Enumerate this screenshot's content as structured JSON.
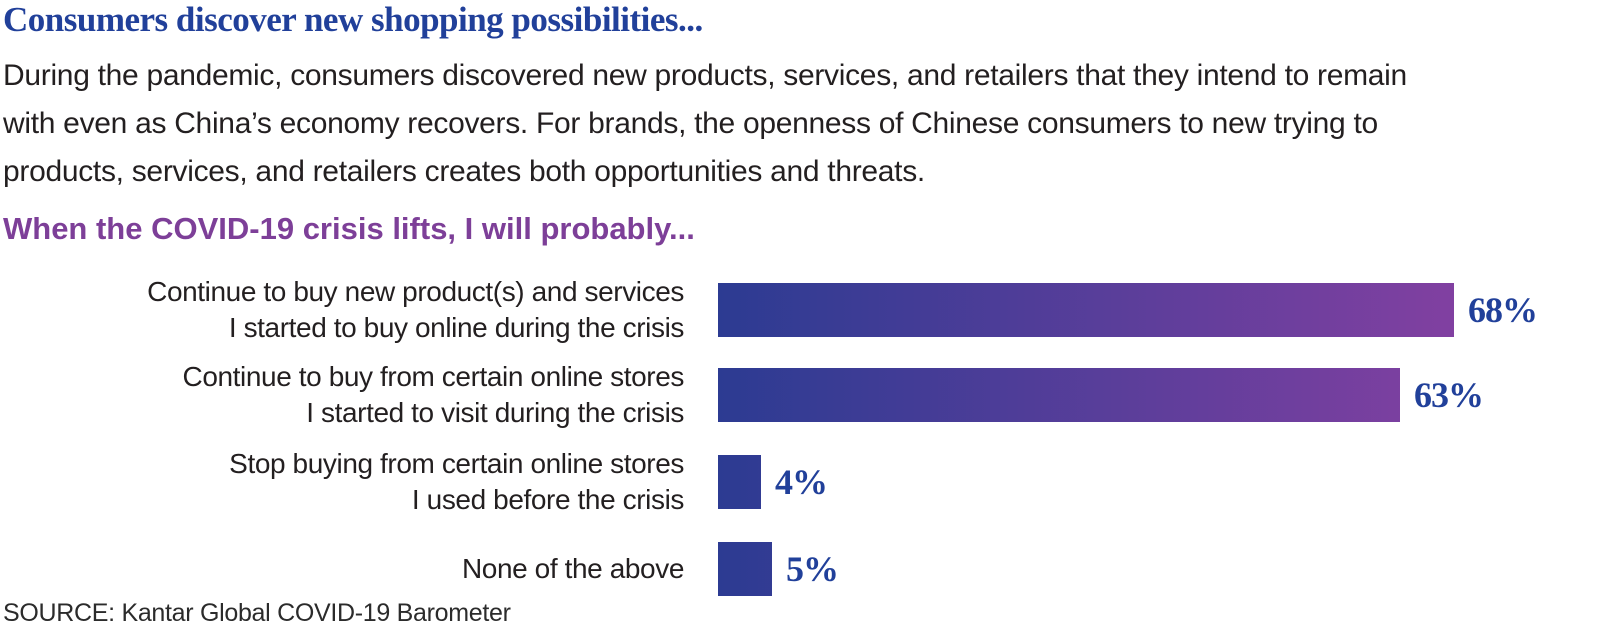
{
  "title": "Consumers discover new shopping possibilities...",
  "intro": {
    "lines": [
      "During the pandemic, consumers discovered new products, services, and retailers that they intend to remain",
      "with even as China’s economy recovers. For brands, the openness of Chinese consumers to new trying to",
      "products, services, and retailers creates both opportunities and threats."
    ]
  },
  "section_heading": "When the COVID-19 crisis lifts, I will probably...",
  "chart_data": {
    "type": "bar",
    "orientation": "horizontal",
    "unit": "%",
    "title": "When the COVID-19 crisis lifts, I will probably...",
    "categories": [
      "Continue to buy new product(s) and services I started to buy online during the crisis",
      "Continue to buy from certain online stores I started to visit during the crisis",
      "Stop buying from certain online stores I used before the crisis",
      "None of the above"
    ],
    "category_lines": [
      [
        "Continue to buy new product(s) and services",
        "I started to buy online during the crisis"
      ],
      [
        "Continue to buy from certain online stores",
        "I started to visit during the crisis"
      ],
      [
        "Stop buying from certain online stores",
        "I used before the crisis"
      ],
      [
        "None of the above"
      ]
    ],
    "values": [
      68,
      63,
      4,
      5
    ],
    "value_labels": [
      "68%",
      "63%",
      "4%",
      "5%"
    ],
    "xlim": [
      0,
      68
    ],
    "grid": false,
    "legend": false,
    "bar_gradient": [
      "#2c3b92",
      "#8140a1"
    ]
  },
  "source": "SOURCE: Kantar Global COVID-19 Barometer",
  "colors": {
    "title_blue": "#21409a",
    "heading_purple": "#7d3f98",
    "bar_blue": "#2c3b92",
    "bar_purple": "#8140a1",
    "text_dark": "#231f20"
  }
}
